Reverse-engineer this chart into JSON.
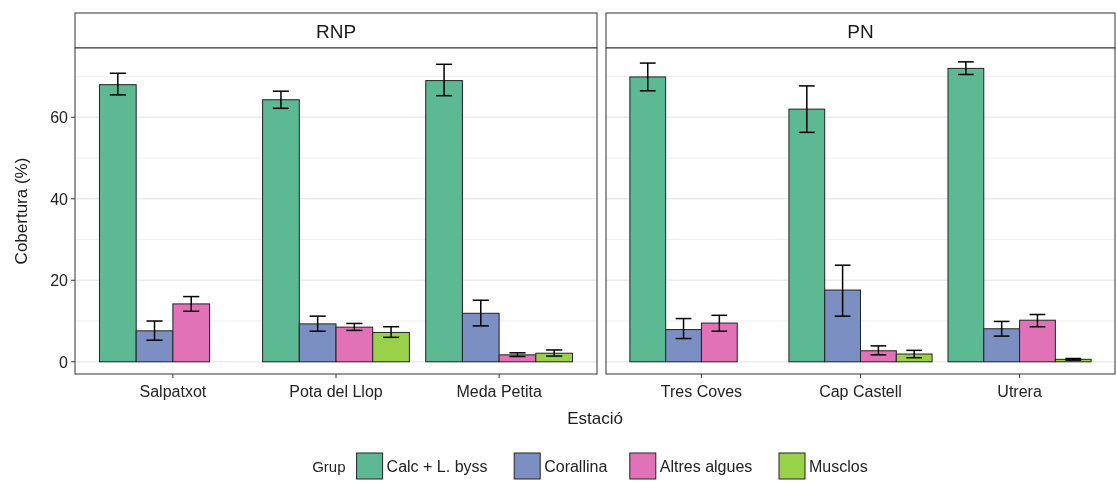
{
  "chart_data": [
    {
      "type": "bar",
      "title": "RNP",
      "xlabel": "Estació",
      "ylabel": "Cobertura (%)",
      "legend_title": "Grup",
      "legend": "bottom",
      "grid": "y",
      "categories": [
        "Salpatxot",
        "Pota del Llop",
        "Meda Petita"
      ],
      "ylim": [
        -3,
        77
      ],
      "yticks": [
        0,
        {
          "value": 10,
          "label": null
        },
        20,
        {
          "value": 30,
          "label": null
        },
        40,
        {
          "value": 50,
          "label": null
        },
        60,
        {
          "value": 70,
          "label": null
        }
      ],
      "series": [
        {
          "name": "Calc + L. byss",
          "color": "#5cb994",
          "values": [
            68,
            64.3,
            69
          ],
          "errors": [
            [
              65.5,
              70.8
            ],
            [
              62.2,
              66.4
            ],
            [
              65.3,
              73
            ]
          ]
        },
        {
          "name": "Corallina",
          "color": "#7b8fc3",
          "values": [
            7.6,
            9.3,
            11.9
          ],
          "errors": [
            [
              5.3,
              10
            ],
            [
              7.5,
              11.2
            ],
            [
              8.8,
              15.1
            ]
          ]
        },
        {
          "name": "Altres algues",
          "color": "#e272b7",
          "values": [
            14.2,
            8.5,
            1.7
          ],
          "errors": [
            [
              12.4,
              16
            ],
            [
              7.7,
              9.4
            ],
            [
              1.3,
              2.2
            ]
          ]
        },
        {
          "name": "Musclos",
          "color": "#9ad14b",
          "values": [
            0,
            7.2,
            2.1
          ],
          "errors": [
            null,
            [
              6,
              8.6
            ],
            [
              1.4,
              2.9
            ]
          ]
        }
      ]
    },
    {
      "type": "bar",
      "title": "PN",
      "grid": "y",
      "tick_labels": "x",
      "categories": [
        "Tres Coves",
        "Cap Castell",
        "Utrera"
      ],
      "ylim": [
        -3,
        77
      ],
      "yticks": [
        0,
        {
          "value": 10,
          "label": null
        },
        20,
        {
          "value": 30,
          "label": null
        },
        40,
        {
          "value": 50,
          "label": null
        },
        60,
        {
          "value": 70,
          "label": null
        }
      ],
      "series": [
        {
          "color": "#5cb994",
          "values": [
            69.9,
            62,
            72
          ],
          "errors": [
            [
              66.5,
              73.3
            ],
            [
              56.3,
              67.7
            ],
            [
              70.5,
              73.6
            ]
          ]
        },
        {
          "color": "#7b8fc3",
          "values": [
            7.9,
            17.6,
            8.1
          ],
          "errors": [
            [
              5.7,
              10.6
            ],
            [
              11.2,
              23.7
            ],
            [
              6.3,
              9.9
            ]
          ]
        },
        {
          "color": "#e272b7",
          "values": [
            9.5,
            2.7,
            10.2
          ],
          "errors": [
            [
              7.5,
              11.4
            ],
            [
              1.7,
              3.9
            ],
            [
              8.6,
              11.6
            ]
          ]
        },
        {
          "color": "#9ad14b",
          "values": [
            0,
            1.9,
            0.6
          ],
          "errors": [
            null,
            [
              1,
              2.8
            ],
            [
              0.4,
              0.8
            ]
          ]
        }
      ]
    }
  ]
}
